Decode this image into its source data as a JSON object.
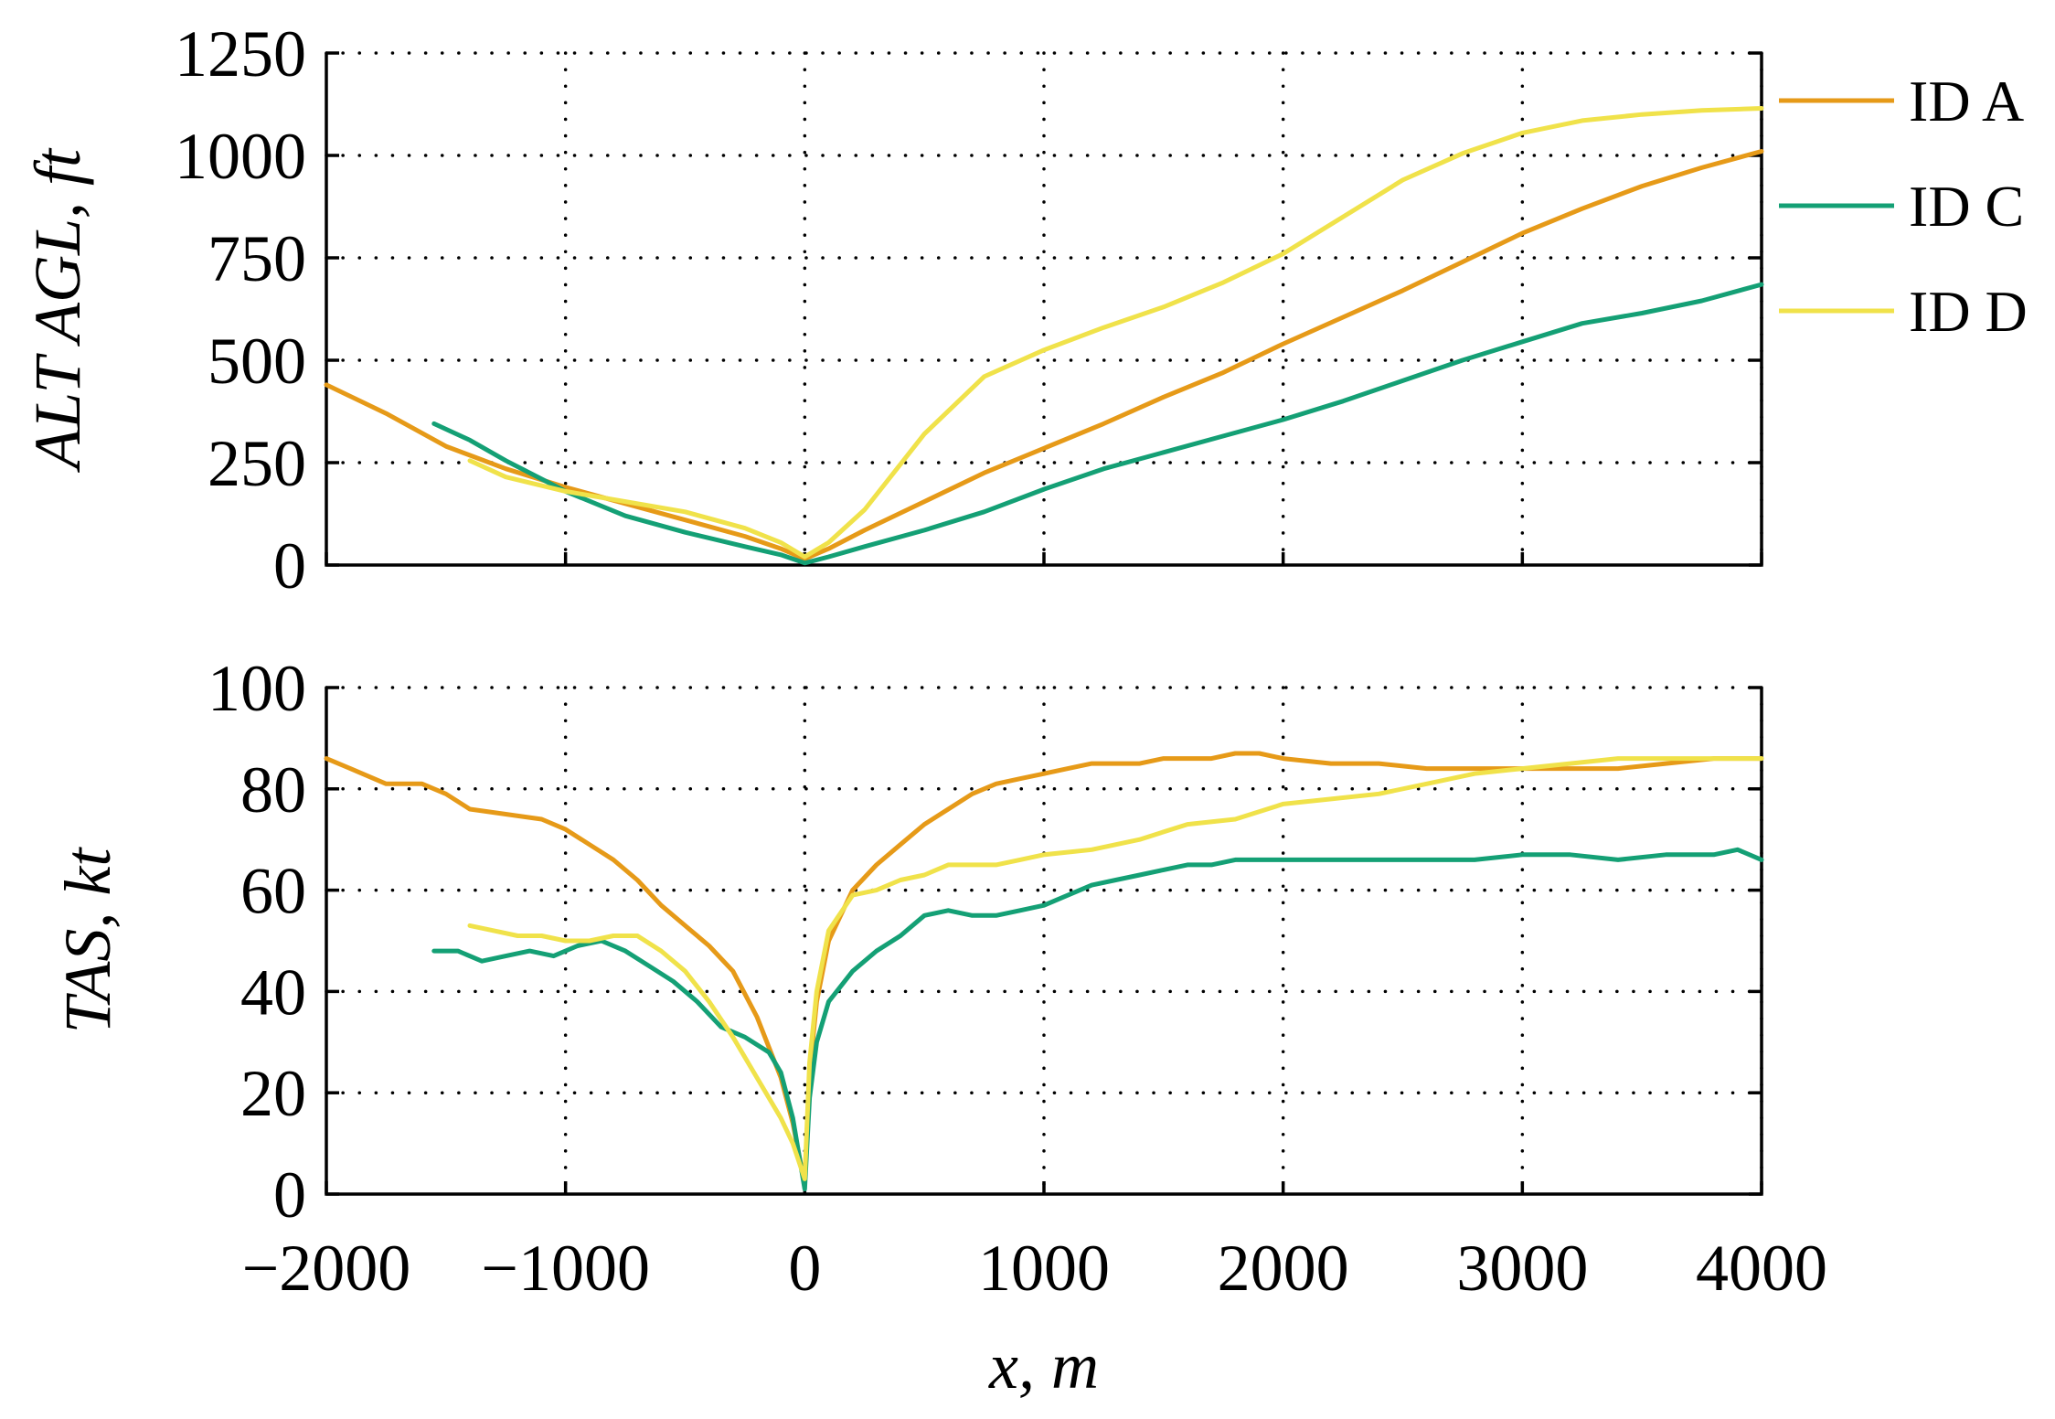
{
  "colors": {
    "ID A": "#E69A18",
    "ID C": "#14A075",
    "ID D": "#F0E24A"
  },
  "legend": [
    "ID A",
    "ID C",
    "ID D"
  ],
  "chart_data": [
    {
      "type": "line",
      "panel": "top",
      "ylabel": "ALT AGL, ft",
      "xlabel": "",
      "xlim": [
        -2000,
        4000
      ],
      "ylim": [
        0,
        1250
      ],
      "xticks": [
        -2000,
        -1000,
        0,
        1000,
        2000,
        3000,
        4000
      ],
      "yticks": [
        0,
        250,
        500,
        750,
        1000,
        1250
      ],
      "ytick_labels": [
        "0",
        "250",
        "500",
        "750",
        "1000",
        "1250"
      ],
      "grid": true,
      "series": [
        {
          "name": "ID A",
          "x": [
            -2000,
            -1750,
            -1500,
            -1250,
            -1000,
            -750,
            -500,
            -250,
            -100,
            0,
            100,
            250,
            500,
            750,
            1000,
            1250,
            1500,
            1750,
            2000,
            2250,
            2500,
            2750,
            3000,
            3250,
            3500,
            3750,
            4000
          ],
          "y": [
            440,
            370,
            290,
            235,
            190,
            150,
            110,
            70,
            40,
            15,
            40,
            85,
            155,
            225,
            285,
            345,
            410,
            470,
            540,
            605,
            670,
            740,
            810,
            870,
            925,
            970,
            1010
          ]
        },
        {
          "name": "ID C",
          "x": [
            -1550,
            -1400,
            -1250,
            -1000,
            -750,
            -500,
            -250,
            -100,
            0,
            100,
            250,
            500,
            750,
            1000,
            1250,
            1500,
            1750,
            2000,
            2250,
            2500,
            2750,
            3000,
            3250,
            3500,
            3750,
            4000
          ],
          "y": [
            345,
            305,
            255,
            180,
            120,
            80,
            45,
            25,
            5,
            20,
            45,
            85,
            130,
            185,
            235,
            275,
            315,
            355,
            400,
            450,
            500,
            545,
            590,
            615,
            645,
            685
          ]
        },
        {
          "name": "ID D",
          "x": [
            -1400,
            -1250,
            -1000,
            -750,
            -500,
            -250,
            -100,
            0,
            100,
            250,
            500,
            750,
            1000,
            1250,
            1500,
            1750,
            2000,
            2250,
            2500,
            2750,
            3000,
            3250,
            3500,
            3750,
            4000
          ],
          "y": [
            255,
            215,
            180,
            155,
            130,
            90,
            55,
            20,
            55,
            135,
            320,
            460,
            525,
            580,
            630,
            690,
            760,
            850,
            940,
            1005,
            1055,
            1085,
            1100,
            1110,
            1115
          ]
        }
      ]
    },
    {
      "type": "line",
      "panel": "bottom",
      "ylabel": "TAS, kt",
      "xlabel": "x, m",
      "xlim": [
        -2000,
        4000
      ],
      "ylim": [
        0,
        100
      ],
      "xticks": [
        -2000,
        -1000,
        0,
        1000,
        2000,
        3000,
        4000
      ],
      "xtick_labels": [
        "−2000",
        "−1000",
        "0",
        "1000",
        "2000",
        "3000",
        "4000"
      ],
      "yticks": [
        0,
        20,
        40,
        60,
        80,
        100
      ],
      "ytick_labels": [
        "0",
        "20",
        "40",
        "60",
        "80",
        "100"
      ],
      "grid": true,
      "series": [
        {
          "name": "ID A",
          "x": [
            -2000,
            -1900,
            -1750,
            -1600,
            -1500,
            -1400,
            -1250,
            -1100,
            -1000,
            -900,
            -800,
            -700,
            -600,
            -500,
            -400,
            -300,
            -200,
            -100,
            -50,
            0,
            20,
            50,
            100,
            200,
            300,
            400,
            500,
            600,
            700,
            800,
            900,
            1000,
            1100,
            1200,
            1300,
            1400,
            1500,
            1600,
            1700,
            1800,
            1900,
            2000,
            2200,
            2400,
            2600,
            2800,
            3000,
            3200,
            3400,
            3600,
            3800,
            4000
          ],
          "y": [
            86,
            84,
            81,
            81,
            79,
            76,
            75,
            74,
            72,
            69,
            66,
            62,
            57,
            53,
            49,
            44,
            35,
            23,
            14,
            2,
            24,
            38,
            50,
            60,
            65,
            69,
            73,
            76,
            79,
            81,
            82,
            83,
            84,
            85,
            85,
            85,
            86,
            86,
            86,
            87,
            87,
            86,
            85,
            85,
            84,
            84,
            84,
            84,
            84,
            85,
            86,
            86
          ]
        },
        {
          "name": "ID C",
          "x": [
            -1550,
            -1450,
            -1350,
            -1250,
            -1150,
            -1050,
            -950,
            -850,
            -750,
            -650,
            -550,
            -450,
            -350,
            -250,
            -150,
            -100,
            -50,
            0,
            20,
            50,
            100,
            200,
            300,
            400,
            500,
            600,
            700,
            800,
            900,
            1000,
            1100,
            1200,
            1300,
            1400,
            1500,
            1600,
            1700,
            1800,
            1900,
            2000,
            2200,
            2400,
            2600,
            2800,
            3000,
            3200,
            3400,
            3600,
            3800,
            3900,
            4000
          ],
          "y": [
            48,
            48,
            46,
            47,
            48,
            47,
            49,
            50,
            48,
            45,
            42,
            38,
            33,
            31,
            28,
            24,
            15,
            1,
            19,
            30,
            38,
            44,
            48,
            51,
            55,
            56,
            55,
            55,
            56,
            57,
            59,
            61,
            62,
            63,
            64,
            65,
            65,
            66,
            66,
            66,
            66,
            66,
            66,
            66,
            67,
            67,
            66,
            67,
            67,
            68,
            66
          ]
        },
        {
          "name": "ID D",
          "x": [
            -1400,
            -1300,
            -1200,
            -1100,
            -1000,
            -900,
            -800,
            -700,
            -600,
            -500,
            -400,
            -300,
            -200,
            -100,
            -50,
            0,
            20,
            50,
            100,
            200,
            300,
            400,
            500,
            600,
            700,
            800,
            900,
            1000,
            1200,
            1400,
            1600,
            1800,
            2000,
            2200,
            2400,
            2600,
            2800,
            3000,
            3200,
            3400,
            3600,
            3800,
            4000
          ],
          "y": [
            53,
            52,
            51,
            51,
            50,
            50,
            51,
            51,
            48,
            44,
            38,
            31,
            23,
            15,
            10,
            3,
            26,
            40,
            52,
            59,
            60,
            62,
            63,
            65,
            65,
            65,
            66,
            67,
            68,
            70,
            73,
            74,
            77,
            78,
            79,
            81,
            83,
            84,
            85,
            86,
            86,
            86,
            86
          ]
        }
      ]
    }
  ]
}
